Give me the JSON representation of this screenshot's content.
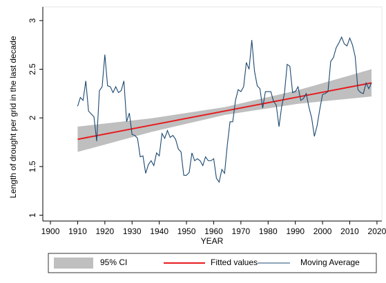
{
  "chart_data": {
    "type": "line",
    "x_label": "YEAR",
    "y_label": "Length of drought per grid in the last decade",
    "xlim": [
      1897.2,
      2021.8
    ],
    "ylim": [
      0.94,
      3.07
    ],
    "xticks": [
      1900,
      1910,
      1920,
      1930,
      1940,
      1950,
      1960,
      1970,
      1980,
      1990,
      2000,
      2010,
      2020
    ],
    "yticks": [
      1,
      1.5,
      2,
      2.5,
      3
    ],
    "series": [
      {
        "name": "95% CI",
        "type": "area",
        "color": "#bfbfbf",
        "x": [
          1910,
          1937,
          1964,
          1991,
          2018
        ],
        "lower": [
          1.65,
          1.855,
          2.03,
          2.145,
          2.22
        ],
        "upper": [
          1.91,
          1.995,
          2.11,
          2.285,
          2.5
        ]
      },
      {
        "name": "Fitted values",
        "type": "line",
        "color": "#e8191c",
        "x": [
          1910,
          1937,
          1964,
          1991,
          2018
        ],
        "values": [
          1.78,
          1.925,
          2.07,
          2.215,
          2.36
        ]
      },
      {
        "name": "Moving Average",
        "type": "line",
        "color": "#1a476f",
        "x": [
          1910,
          1911,
          1912,
          1913,
          1914,
          1915,
          1916,
          1917,
          1918,
          1919,
          1920,
          1921,
          1922,
          1923,
          1924,
          1925,
          1926,
          1927,
          1928,
          1929,
          1930,
          1931,
          1932,
          1933,
          1934,
          1935,
          1936,
          1937,
          1938,
          1939,
          1940,
          1941,
          1942,
          1943,
          1944,
          1945,
          1946,
          1947,
          1948,
          1949,
          1950,
          1951,
          1952,
          1953,
          1954,
          1955,
          1956,
          1957,
          1958,
          1959,
          1960,
          1961,
          1962,
          1963,
          1964,
          1965,
          1966,
          1967,
          1968,
          1969,
          1970,
          1971,
          1972,
          1973,
          1974,
          1975,
          1976,
          1977,
          1978,
          1979,
          1980,
          1981,
          1982,
          1983,
          1984,
          1985,
          1986,
          1987,
          1988,
          1989,
          1990,
          1991,
          1992,
          1993,
          1994,
          1995,
          1996,
          1997,
          1998,
          1999,
          2000,
          2001,
          2002,
          2003,
          2004,
          2005,
          2006,
          2007,
          2008,
          2009,
          2010,
          2011,
          2012,
          2013,
          2014,
          2015,
          2016,
          2017,
          2018
        ],
        "values": [
          2.12,
          2.21,
          2.18,
          2.38,
          2.07,
          2.04,
          2.01,
          1.76,
          2.28,
          2.32,
          2.65,
          2.33,
          2.32,
          2.26,
          2.32,
          2.26,
          2.28,
          2.38,
          1.96,
          2.05,
          1.83,
          1.82,
          1.79,
          1.6,
          1.61,
          1.43,
          1.52,
          1.56,
          1.51,
          1.64,
          1.61,
          1.84,
          1.79,
          1.87,
          1.8,
          1.82,
          1.78,
          1.68,
          1.65,
          1.41,
          1.41,
          1.44,
          1.64,
          1.56,
          1.58,
          1.56,
          1.51,
          1.6,
          1.56,
          1.56,
          1.58,
          1.38,
          1.34,
          1.47,
          1.43,
          1.72,
          1.96,
          1.96,
          2.18,
          2.29,
          2.27,
          2.32,
          2.57,
          2.5,
          2.8,
          2.48,
          2.33,
          2.3,
          2.1,
          2.27,
          2.27,
          2.27,
          2.17,
          2.13,
          1.91,
          2.12,
          2.25,
          2.55,
          2.53,
          2.26,
          2.27,
          2.32,
          2.18,
          2.2,
          2.25,
          2.11,
          2.0,
          1.81,
          1.92,
          2.09,
          2.24,
          2.25,
          2.27,
          2.58,
          2.62,
          2.72,
          2.77,
          2.83,
          2.76,
          2.74,
          2.82,
          2.75,
          2.63,
          2.29,
          2.26,
          2.25,
          2.36,
          2.3,
          2.36
        ]
      }
    ]
  }
}
